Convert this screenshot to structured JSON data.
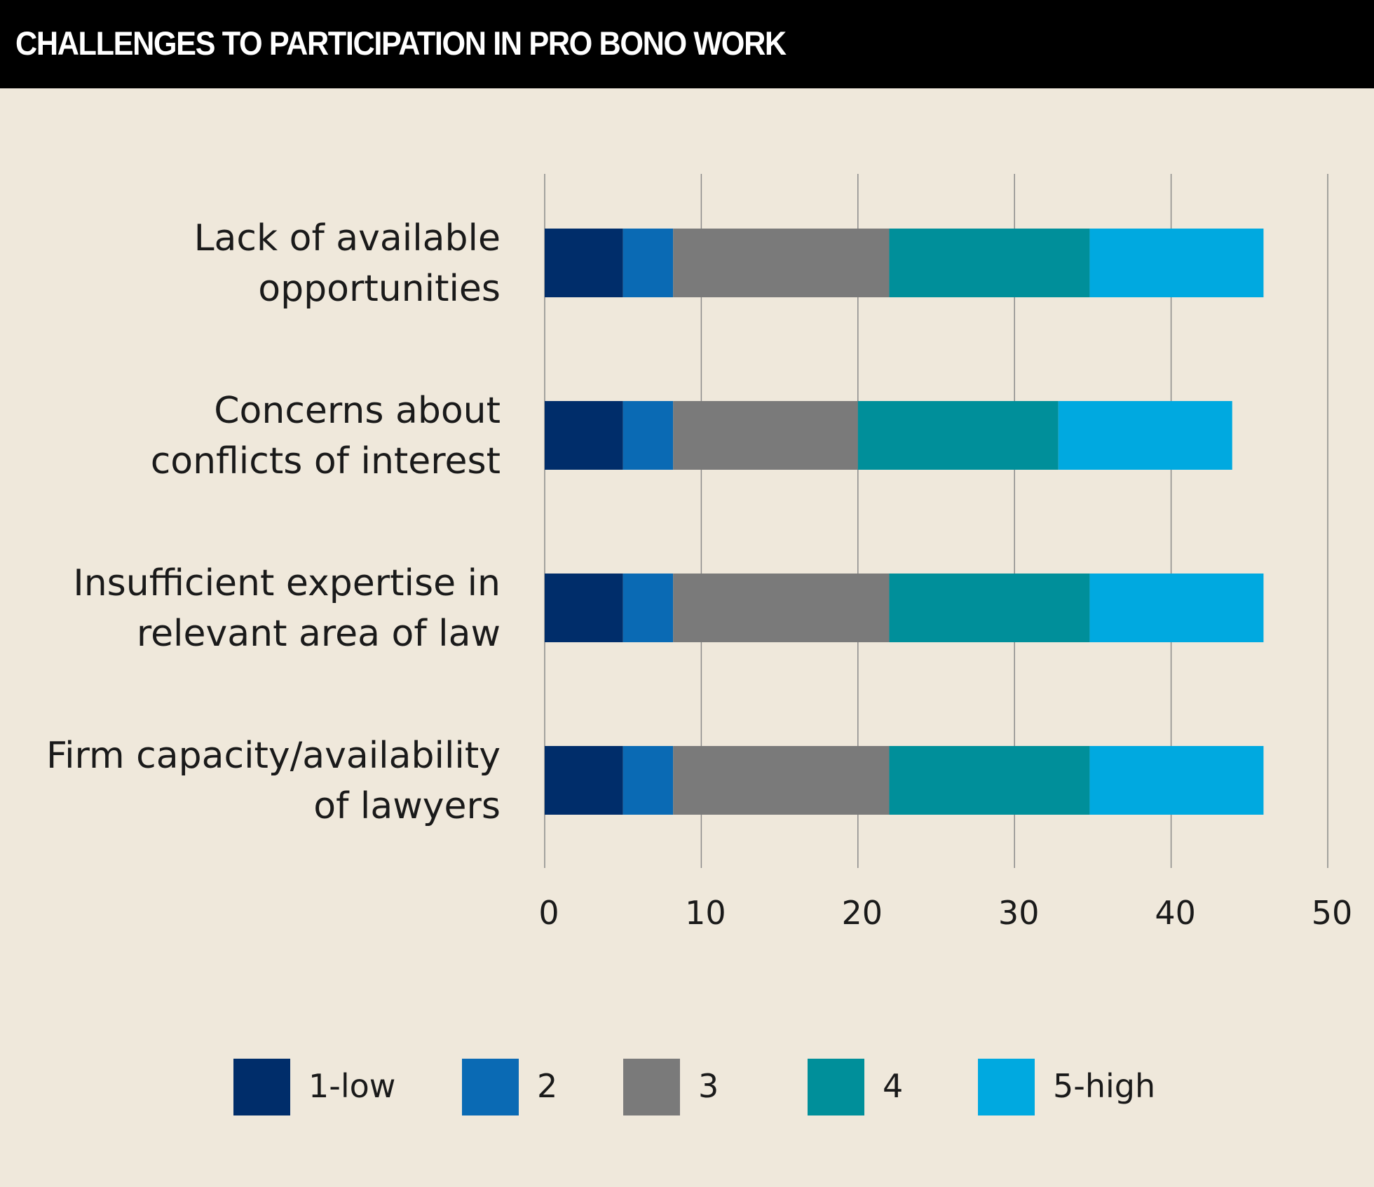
{
  "title": "CHALLENGES TO PARTICIPATION IN PRO BONO WORK",
  "colors": {
    "background": "#efe8db",
    "header": "#000000",
    "grid": "#8a8a8a",
    "series": [
      "#002d6a",
      "#0a6ab4",
      "#7a7a7a",
      "#008f9a",
      "#00a9e0"
    ]
  },
  "chart_data": {
    "type": "bar",
    "orientation": "horizontal",
    "stacked": true,
    "title": "CHALLENGES TO PARTICIPATION IN PRO BONO WORK",
    "categories": [
      [
        "Lack of available",
        "opportunities"
      ],
      [
        "Concerns about",
        "conflicts of interest"
      ],
      [
        "Insufficient expertise in",
        "relevant area of law"
      ],
      [
        "Firm capacity/availability",
        "of lawyers"
      ]
    ],
    "series": [
      {
        "name": "1-low",
        "values": [
          5,
          5,
          5,
          5
        ]
      },
      {
        "name": "2",
        "values": [
          3.2,
          3.2,
          3.2,
          3.2
        ]
      },
      {
        "name": "3",
        "values": [
          13.8,
          11.8,
          13.8,
          13.8
        ]
      },
      {
        "name": "4",
        "values": [
          12.8,
          12.8,
          12.8,
          12.8
        ]
      },
      {
        "name": "5-high",
        "values": [
          11.1,
          11.1,
          11.1,
          11.1
        ]
      }
    ],
    "xlim": [
      0,
      50
    ],
    "xticks": [
      "0",
      "10",
      "20",
      "30",
      "40",
      "50"
    ],
    "grid": true,
    "legend_position": "bottom"
  }
}
